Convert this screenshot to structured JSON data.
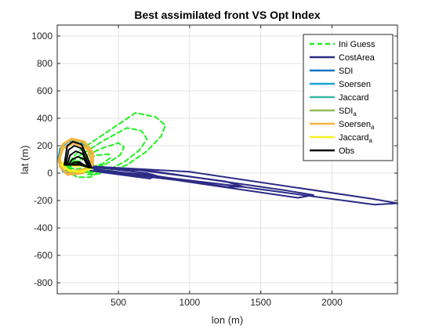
{
  "chart_data": {
    "type": "line",
    "title": "Best assimilated front VS Opt Index",
    "xlabel": "lon (m)",
    "ylabel": "lat (m)",
    "xlim": [
      70,
      2460
    ],
    "ylim": [
      -880,
      1080
    ],
    "xticks": [
      500,
      1000,
      1500,
      2000
    ],
    "xtick_labels": [
      "500",
      "1000",
      "1500",
      "2000"
    ],
    "yticks": [
      -800,
      -600,
      -400,
      -200,
      0,
      200,
      400,
      600,
      800,
      1000
    ],
    "ytick_labels": [
      "-800",
      "-600",
      "-400",
      "-200",
      "0",
      "200",
      "400",
      "600",
      "800",
      "1000"
    ],
    "grid": true,
    "legend_position": "top-right",
    "colors": {
      "ini_guess": "#21f020",
      "cost_area": "#2c2b85",
      "sdi": "#0e72c2",
      "soersen": "#1ba4d2",
      "jaccard": "#39b8a5",
      "sdi_a": "#8fbc5a",
      "soersen_a": "#f7b33a",
      "jaccard_a": "#f5f220",
      "obs": "#000000"
    },
    "series": [
      {
        "key": "ini_guess",
        "name": "Ini Guess",
        "sub": "",
        "color": "#21f020",
        "dash": "6,4",
        "width": 2,
        "paths": [
          [
            [
              120,
              40
            ],
            [
              220,
              160
            ],
            [
              420,
              300
            ],
            [
              620,
              440
            ],
            [
              760,
              410
            ],
            [
              830,
              350
            ],
            [
              800,
              270
            ],
            [
              700,
              160
            ],
            [
              560,
              60
            ],
            [
              460,
              20
            ],
            [
              320,
              10
            ],
            [
              200,
              0
            ],
            [
              140,
              20
            ],
            [
              120,
              40
            ]
          ],
          [
            [
              130,
              40
            ],
            [
              230,
              130
            ],
            [
              400,
              240
            ],
            [
              560,
              330
            ],
            [
              660,
              310
            ],
            [
              700,
              250
            ],
            [
              650,
              170
            ],
            [
              540,
              80
            ],
            [
              420,
              20
            ],
            [
              290,
              10
            ],
            [
              180,
              10
            ],
            [
              130,
              40
            ]
          ],
          [
            [
              140,
              40
            ],
            [
              240,
              110
            ],
            [
              380,
              180
            ],
            [
              500,
              220
            ],
            [
              540,
              190
            ],
            [
              510,
              130
            ],
            [
              420,
              70
            ],
            [
              300,
              30
            ],
            [
              190,
              20
            ],
            [
              140,
              40
            ]
          ],
          [
            [
              150,
              40
            ],
            [
              250,
              100
            ],
            [
              350,
              130
            ],
            [
              430,
              140
            ],
            [
              440,
              110
            ],
            [
              390,
              70
            ],
            [
              300,
              40
            ],
            [
              200,
              30
            ],
            [
              150,
              40
            ]
          ],
          [
            [
              330,
              10
            ],
            [
              380,
              60
            ],
            [
              410,
              40
            ],
            [
              390,
              0
            ],
            [
              330,
              -10
            ],
            [
              280,
              -10
            ],
            [
              330,
              10
            ]
          ],
          [
            [
              130,
              20
            ],
            [
              210,
              -30
            ],
            [
              300,
              -30
            ],
            [
              350,
              0
            ]
          ]
        ]
      },
      {
        "key": "cost_area",
        "name": "CostArea",
        "sub": "",
        "color": "#2c2b85",
        "dash": "",
        "width": 2,
        "paths": [
          [
            [
              300,
              40
            ],
            [
              360,
              40
            ],
            [
              700,
              0
            ],
            [
              770,
              -20
            ],
            [
              720,
              -40
            ],
            [
              360,
              10
            ],
            [
              300,
              20
            ]
          ],
          [
            [
              300,
              40
            ],
            [
              660,
              20
            ],
            [
              1250,
              -60
            ],
            [
              1380,
              -100
            ],
            [
              1260,
              -100
            ],
            [
              700,
              -10
            ],
            [
              330,
              20
            ]
          ],
          [
            [
              310,
              40
            ],
            [
              700,
              20
            ],
            [
              1700,
              -130
            ],
            [
              1870,
              -160
            ],
            [
              1760,
              -180
            ],
            [
              900,
              -50
            ],
            [
              330,
              20
            ]
          ],
          [
            [
              300,
              50
            ],
            [
              1000,
              10
            ],
            [
              2300,
              -190
            ],
            [
              2460,
              -220
            ],
            [
              2300,
              -230
            ],
            [
              1300,
              -90
            ],
            [
              330,
              30
            ],
            [
              300,
              50
            ]
          ]
        ]
      },
      {
        "key": "sdi",
        "name": "SDI",
        "sub": "",
        "color": "#0e72c2",
        "dash": "",
        "width": 2,
        "paths": []
      },
      {
        "key": "soersen",
        "name": "Soersen",
        "sub": "",
        "color": "#1ba4d2",
        "dash": "",
        "width": 2,
        "paths": [
          [
            [
              75,
              100
            ],
            [
              90,
              180
            ],
            [
              150,
              230
            ],
            [
              230,
              230
            ],
            [
              290,
              170
            ],
            [
              310,
              90
            ],
            [
              280,
              20
            ],
            [
              200,
              -10
            ],
            [
              110,
              10
            ],
            [
              75,
              100
            ]
          ]
        ]
      },
      {
        "key": "jaccard",
        "name": "Jaccard",
        "sub": "",
        "color": "#39b8a5",
        "dash": "",
        "width": 2,
        "paths": []
      },
      {
        "key": "sdi_a",
        "name": "SDI",
        "sub": "a",
        "color": "#8fbc5a",
        "dash": "",
        "width": 2,
        "paths": [
          [
            [
              85,
              100
            ],
            [
              100,
              200
            ],
            [
              160,
              240
            ],
            [
              240,
              230
            ],
            [
              300,
              160
            ],
            [
              310,
              80
            ],
            [
              260,
              20
            ],
            [
              170,
              -5
            ],
            [
              100,
              30
            ],
            [
              85,
              100
            ]
          ]
        ]
      },
      {
        "key": "soersen_a",
        "name": "Soersen",
        "sub": "a",
        "color": "#f7b33a",
        "dash": "",
        "width": 3,
        "paths": [
          [
            [
              90,
              120
            ],
            [
              110,
              210
            ],
            [
              170,
              250
            ],
            [
              260,
              230
            ],
            [
              320,
              150
            ],
            [
              320,
              60
            ],
            [
              250,
              0
            ],
            [
              140,
              -10
            ],
            [
              90,
              50
            ],
            [
              90,
              120
            ]
          ],
          [
            [
              80,
              90
            ],
            [
              110,
              180
            ],
            [
              190,
              220
            ],
            [
              280,
              180
            ],
            [
              310,
              100
            ],
            [
              270,
              30
            ],
            [
              160,
              10
            ],
            [
              80,
              90
            ]
          ]
        ]
      },
      {
        "key": "jaccard_a",
        "name": "Jaccard",
        "sub": "a",
        "color": "#f5f220",
        "dash": "",
        "width": 3,
        "paths": [
          [
            [
              100,
              60
            ],
            [
              150,
              20
            ],
            [
              230,
              10
            ],
            [
              300,
              30
            ],
            [
              290,
              60
            ],
            [
              200,
              50
            ],
            [
              120,
              80
            ],
            [
              100,
              60
            ]
          ]
        ]
      },
      {
        "key": "obs",
        "name": "Obs",
        "sub": "",
        "color": "#000000",
        "dash": "",
        "width": 2,
        "paths": [
          [
            [
              120,
              60
            ],
            [
              140,
              200
            ],
            [
              180,
              230
            ],
            [
              240,
              210
            ],
            [
              280,
              120
            ],
            [
              310,
              40
            ],
            [
              250,
              60
            ],
            [
              180,
              60
            ],
            [
              120,
              60
            ]
          ],
          [
            [
              130,
              60
            ],
            [
              150,
              170
            ],
            [
              190,
              200
            ],
            [
              240,
              180
            ],
            [
              270,
              110
            ],
            [
              300,
              40
            ],
            [
              230,
              60
            ],
            [
              130,
              60
            ]
          ],
          [
            [
              140,
              60
            ],
            [
              160,
              130
            ],
            [
              200,
              160
            ],
            [
              250,
              140
            ],
            [
              280,
              70
            ],
            [
              290,
              40
            ],
            [
              240,
              70
            ],
            [
              140,
              60
            ]
          ],
          [
            [
              150,
              60
            ],
            [
              175,
              100
            ],
            [
              215,
              120
            ],
            [
              260,
              100
            ],
            [
              285,
              50
            ]
          ],
          [
            [
              160,
              60
            ],
            [
              190,
              80
            ],
            [
              230,
              80
            ],
            [
              270,
              50
            ]
          ]
        ]
      }
    ]
  }
}
